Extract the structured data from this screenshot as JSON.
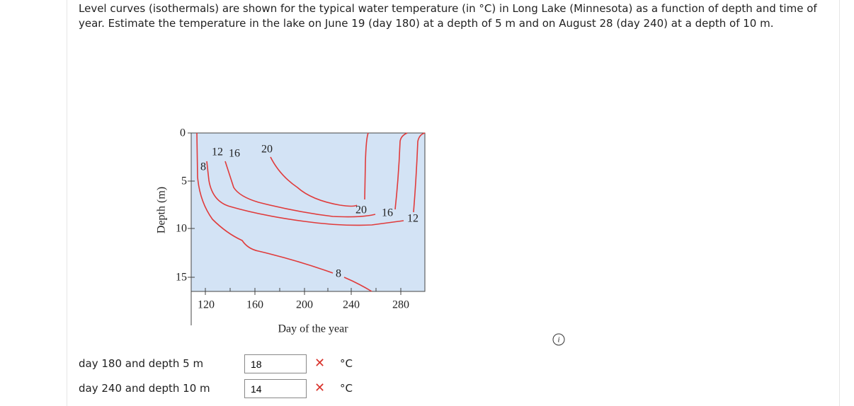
{
  "question": "Level curves (isothermals) are shown for the typical water temperature (in °C) in Long Lake (Minnesota) as a function of depth and time of year. Estimate the temperature in the lake on June 19 (day 180) at a depth of 5 m and on August 28 (day 240) at a depth of 10 m.",
  "figure": {
    "y_label": "Depth (m)",
    "x_label": "Day of the year",
    "y_ticks": [
      "0",
      "5",
      "10",
      "15"
    ],
    "x_ticks": [
      "120",
      "160",
      "200",
      "240",
      "280"
    ],
    "contour_labels": [
      "8",
      "12",
      "16",
      "20",
      "20",
      "16",
      "12",
      "8"
    ]
  },
  "answers": [
    {
      "prompt": "day 180 and depth 5 m",
      "value": "18",
      "unit": "°C"
    },
    {
      "prompt": "day 240 and depth 10 m",
      "value": "14",
      "unit": "°C"
    }
  ]
}
